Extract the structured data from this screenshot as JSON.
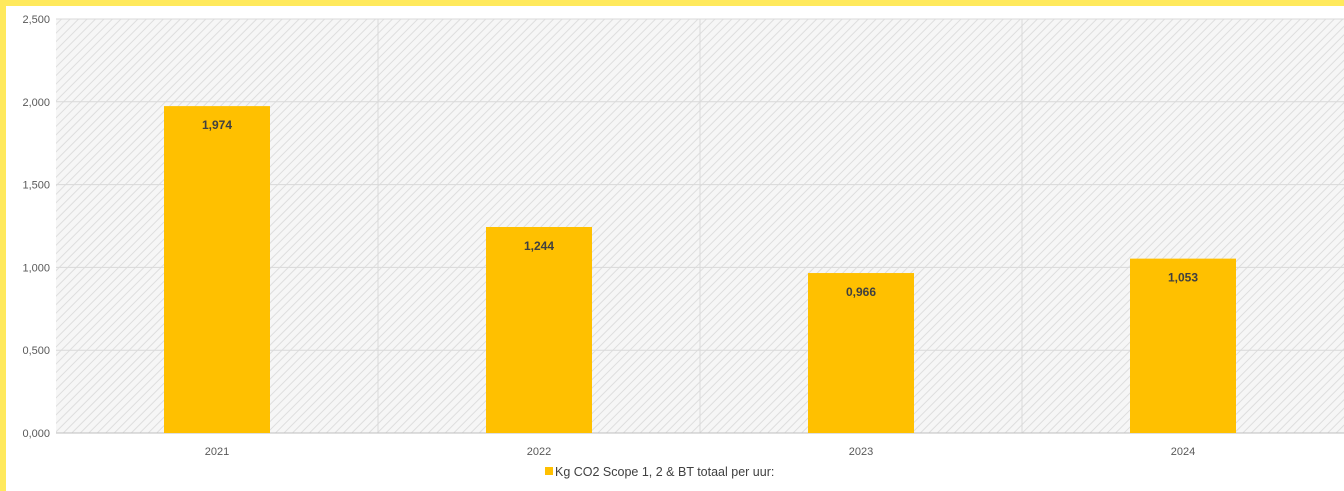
{
  "chart_data": {
    "type": "bar",
    "categories": [
      "2021",
      "2022",
      "2023",
      "2024"
    ],
    "series": [
      {
        "name": "Kg CO2 Scope 1, 2 & BT totaal per uur:",
        "values": [
          1.974,
          1.244,
          0.966,
          1.053
        ],
        "color": "#ffc000"
      }
    ],
    "data_labels": [
      "1,974",
      "1,244",
      "0,966",
      "1,053"
    ],
    "y_ticks": [
      0,
      0.5,
      1.0,
      1.5,
      2.0,
      2.5
    ],
    "y_tick_labels": [
      "0,000",
      "0,500",
      "1,000",
      "1,500",
      "2,000",
      "2,500"
    ],
    "ylim": [
      0,
      2.5
    ],
    "title": "",
    "xlabel": "",
    "ylabel": "",
    "grid": true,
    "legend_position": "bottom"
  },
  "colors": {
    "border": "#ffe95c",
    "bar": "#ffc000",
    "plot_hatch": "#dcdcdc",
    "gridline": "#d9d9d9"
  }
}
